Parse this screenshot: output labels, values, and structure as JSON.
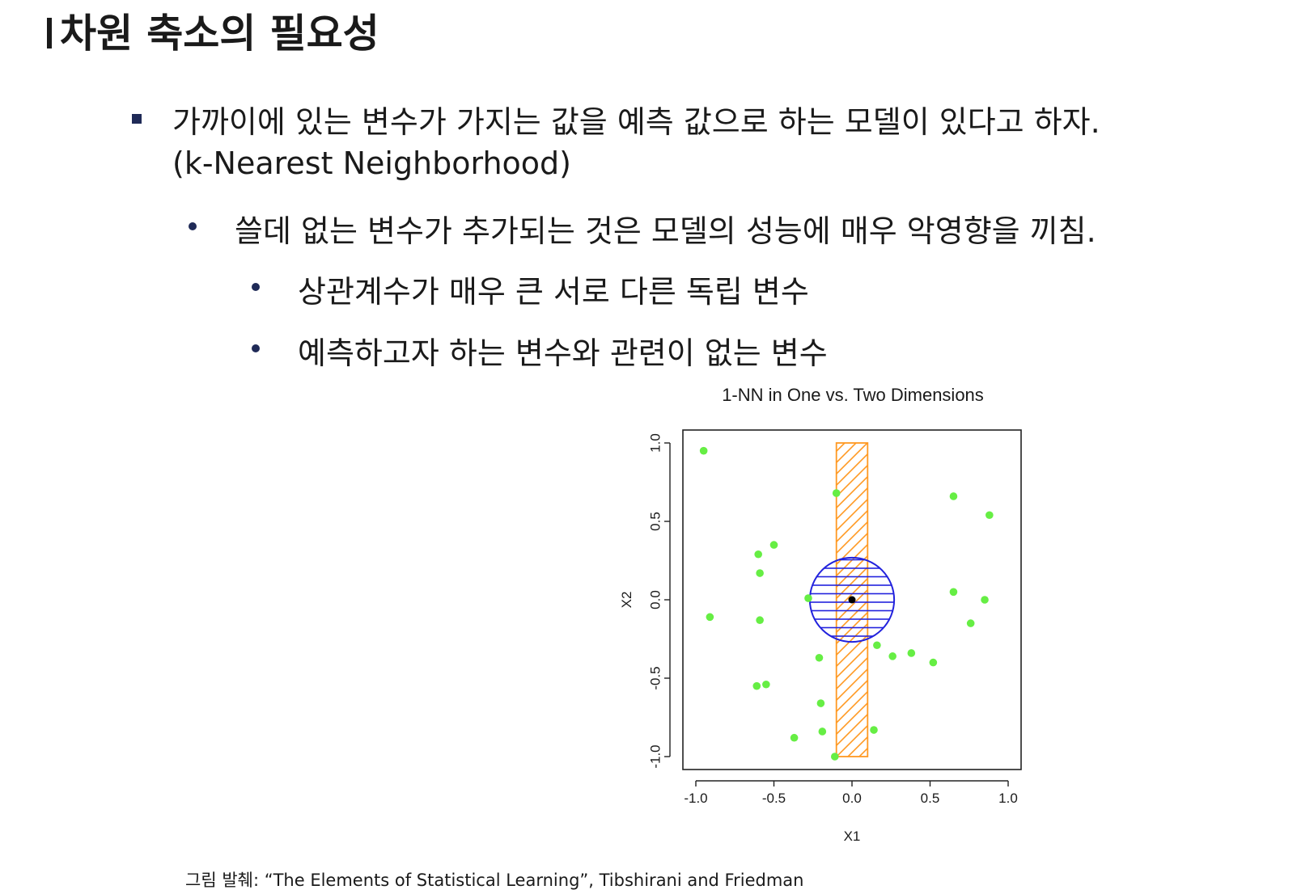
{
  "slide": {
    "title": "차원 축소의 필요성",
    "bullet1": "가까이에 있는 변수가 가지는 값을 예측 값으로 하는 모델이 있다고 하자.",
    "bullet1_cont": "(k-Nearest Neighborhood)",
    "bullet2": "쓸데 없는 변수가 추가되는 것은 모델의 성능에 매우 악영향을 끼침.",
    "bullet3": "상관계수가 매우 큰 서로 다른 독립 변수",
    "bullet4": "예측하고자 하는 변수와 관련이 없는 변수",
    "source": "그림 발췌: “The Elements of Statistical Learning”, Tibshirani and Friedman"
  },
  "chart_data": {
    "type": "scatter",
    "title": "1-NN in One vs. Two Dimensions",
    "xlabel": "X1",
    "ylabel": "X2",
    "xlim": [
      -1.0,
      1.0
    ],
    "ylim": [
      -1.0,
      1.0
    ],
    "xticks": [
      "-1.0",
      "-0.5",
      "0.0",
      "0.5",
      "1.0"
    ],
    "yticks": [
      "-1.0",
      "-0.5",
      "0.0",
      "0.5",
      "1.0"
    ],
    "point_color": "#66ee44",
    "query_point": {
      "x": 0.0,
      "y": 0.0
    },
    "neighborhood_circle": {
      "cx": 0.0,
      "cy": 0.0,
      "r": 0.27,
      "color": "#2222dd"
    },
    "neighborhood_strip": {
      "x_min": -0.1,
      "x_max": 0.1,
      "y_min": -1.0,
      "y_max": 1.0,
      "color": "#ff9922"
    },
    "points": [
      {
        "x": -0.95,
        "y": 0.95
      },
      {
        "x": -0.1,
        "y": 0.68
      },
      {
        "x": 0.65,
        "y": 0.66
      },
      {
        "x": 0.88,
        "y": 0.54
      },
      {
        "x": -0.5,
        "y": 0.35
      },
      {
        "x": -0.6,
        "y": 0.29
      },
      {
        "x": -0.59,
        "y": 0.17
      },
      {
        "x": -0.28,
        "y": 0.01
      },
      {
        "x": 0.65,
        "y": 0.05
      },
      {
        "x": 0.85,
        "y": 0.0
      },
      {
        "x": -0.91,
        "y": -0.11
      },
      {
        "x": -0.59,
        "y": -0.13
      },
      {
        "x": 0.76,
        "y": -0.15
      },
      {
        "x": 0.16,
        "y": -0.29
      },
      {
        "x": 0.26,
        "y": -0.36
      },
      {
        "x": 0.38,
        "y": -0.34
      },
      {
        "x": 0.52,
        "y": -0.4
      },
      {
        "x": -0.21,
        "y": -0.37
      },
      {
        "x": -0.61,
        "y": -0.55
      },
      {
        "x": -0.55,
        "y": -0.54
      },
      {
        "x": -0.2,
        "y": -0.66
      },
      {
        "x": -0.19,
        "y": -0.84
      },
      {
        "x": 0.14,
        "y": -0.83
      },
      {
        "x": -0.37,
        "y": -0.88
      },
      {
        "x": -0.11,
        "y": -1.0
      }
    ]
  }
}
